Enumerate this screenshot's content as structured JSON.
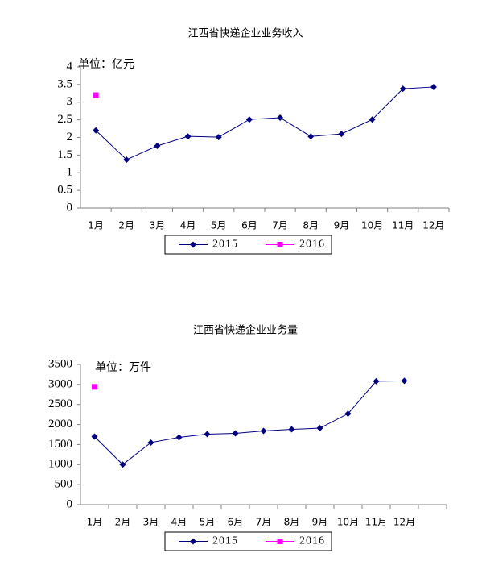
{
  "chart_data": [
    {
      "type": "line",
      "title": "江西省快递企业业务收入",
      "annotation": "单位：亿元",
      "categories": [
        "1月",
        "2月",
        "3月",
        "4月",
        "5月",
        "6月",
        "7月",
        "8月",
        "9月",
        "10月",
        "11月",
        "12月"
      ],
      "series": [
        {
          "name": "2015",
          "color": "#000080",
          "values": [
            2.2,
            1.37,
            1.76,
            2.03,
            2.01,
            2.51,
            2.56,
            2.03,
            2.1,
            2.51,
            3.38,
            3.43
          ]
        },
        {
          "name": "2016",
          "color": "#ff00ff",
          "values": [
            3.2,
            null,
            null,
            null,
            null,
            null,
            null,
            null,
            null,
            null,
            null,
            null
          ]
        }
      ],
      "ylim": [
        0,
        4
      ],
      "yticks": [
        0,
        0.5,
        1,
        1.5,
        2,
        2.5,
        3,
        3.5,
        4
      ],
      "grid": false
    },
    {
      "type": "line",
      "title": "江西省快递企业业务量",
      "annotation": "单位：万件",
      "categories": [
        "1月",
        "2月",
        "3月",
        "4月",
        "5月",
        "6月",
        "7月",
        "8月",
        "9月",
        "10月",
        "11月",
        "12月"
      ],
      "series": [
        {
          "name": "2015",
          "color": "#000080",
          "values": [
            1700,
            1000,
            1550,
            1680,
            1760,
            1780,
            1840,
            1880,
            1910,
            2270,
            3080,
            3090
          ]
        },
        {
          "name": "2016",
          "color": "#ff00ff",
          "values": [
            2940,
            null,
            null,
            null,
            null,
            null,
            null,
            null,
            null,
            null,
            null,
            null
          ]
        }
      ],
      "ylim": [
        0,
        3500
      ],
      "yticks": [
        0,
        500,
        1000,
        1500,
        2000,
        2500,
        3000,
        3500
      ],
      "grid": false
    }
  ]
}
